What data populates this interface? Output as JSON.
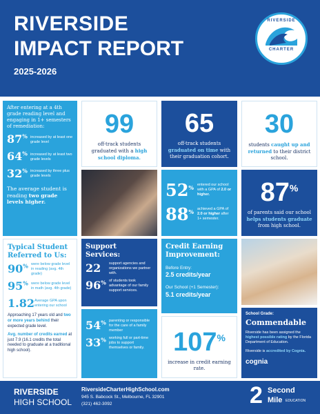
{
  "header": {
    "title_line1": "RIVERSIDE",
    "title_line2": "IMPACT REPORT",
    "years": "2025-2026",
    "logo_top": "RIVERSIDE",
    "logo_bottom": "CHARTER"
  },
  "reading": {
    "intro": "After entering at a 4th grade reading level and engaging in 1+ semesters of remediation:",
    "stats": [
      {
        "value": "87",
        "unit": "%",
        "label": "increased by at least one grade level"
      },
      {
        "value": "64",
        "unit": "%",
        "label": "increased by at least two grade levels"
      },
      {
        "value": "32",
        "unit": "%",
        "label": "increased by three plus grade levels"
      }
    ],
    "summary": [
      "The average student is reading ",
      {
        "em": "two grade levels higher."
      }
    ]
  },
  "graduates": {
    "value": "99",
    "text": [
      "off-track students graduated with a ",
      {
        "em": "high school diploma."
      }
    ]
  },
  "on_time": {
    "value": "65",
    "text": [
      "off-track students ",
      {
        "em": "graduated on time"
      },
      " with their graduation cohort."
    ]
  },
  "caught_up": {
    "value": "30",
    "text": [
      "students ",
      {
        "em": "caught up and returned"
      },
      " to their district school."
    ]
  },
  "gpa": {
    "stats": [
      {
        "value": "52",
        "unit": "%",
        "label": [
          "entered our school with a GPA of ",
          {
            "em": "2.0 or higher."
          }
        ]
      },
      {
        "value": "88",
        "unit": "%",
        "label": [
          "achieved a GPA of ",
          {
            "em": "2.0 or higher"
          },
          " after 1+ semester."
        ]
      }
    ]
  },
  "parents": {
    "value": "87",
    "unit": "%",
    "text": [
      "of parents said our school ",
      {
        "em": "helps students graduate"
      },
      " from high school."
    ]
  },
  "typical": {
    "title": "Typical Student Referred to Us:",
    "stats": [
      {
        "value": "90",
        "unit": "%",
        "label": "were below grade level in reading (avg. 4th grade)"
      },
      {
        "value": "95",
        "unit": "%",
        "label": "were below grade level in math (avg. 4th grade)"
      },
      {
        "value": "1.82",
        "label": "Average GPA upon entering our school"
      }
    ],
    "notes": [
      [
        "Approaching 17 years old and ",
        {
          "em": "two or more years behind"
        },
        " their expected grade level."
      ],
      [
        {
          "em": "Avg. number of credits earned"
        },
        " at just 7.9 (16.1 credits the total needed to graduate at a traditional high school)."
      ]
    ]
  },
  "support": {
    "title": "Support Services:",
    "stats": [
      {
        "value": "22",
        "label": "support agencies and organizations we partner with."
      },
      {
        "value": "96",
        "unit": "%",
        "label": "of students took advantage of our family support services."
      }
    ]
  },
  "family": {
    "stats": [
      {
        "value": "54",
        "unit": "%",
        "label": "parenting or responsible for the care of a family member"
      },
      {
        "value": "33",
        "unit": "%",
        "label": "working full or part-time jobs to support themselves or family."
      }
    ]
  },
  "credit": {
    "title": "Credit Earning Improvement:",
    "before_label": "Before Entry:",
    "before_value": "2.5 credits/year",
    "after_label": "Our School (+1 Semester):",
    "after_value": "5.1 credits/year"
  },
  "increase": {
    "value": "107",
    "unit": "%",
    "text": "increase in credit earning rate."
  },
  "grade": {
    "label": "School Grade:",
    "value": "Commendable",
    "text": [
      "Riverside has been assigned the ",
      {
        "em": "highest possible rating"
      },
      " by the Florida Department of Education."
    ],
    "accredit": [
      "Riverside is ",
      {
        "em": "accredited by Cognia."
      }
    ],
    "cognia": "cognia"
  },
  "footer": {
    "school_line1": "RIVERSIDE",
    "school_line2": "HIGH SCHOOL",
    "website": "RiversideCharterHighSchool.com",
    "address": "945 S. Babcock St., Melbourne, FL 32901",
    "phone": "(321) 462-3092",
    "logo_mark": "2",
    "logo_line1": "Second",
    "logo_line2": "Mile",
    "logo_line3": "EDUCATION"
  }
}
